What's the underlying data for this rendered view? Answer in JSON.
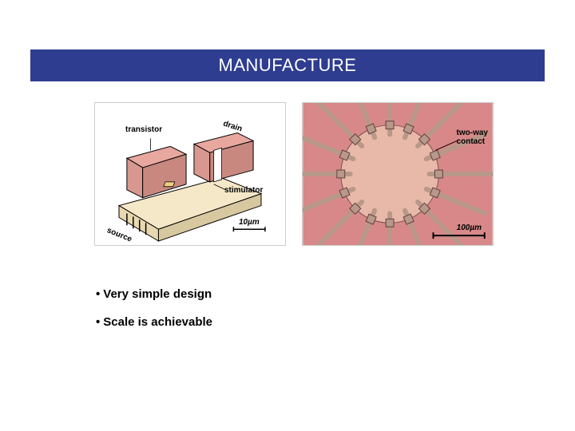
{
  "title_bar": {
    "text": "MANUFACTURE",
    "background_color": "#2e3d8f",
    "text_color": "#ffffff",
    "font_size": 22
  },
  "figure_left": {
    "type": "diagram",
    "labels": {
      "transistor": "transistor",
      "drain": "drain",
      "stimulator": "stimulator",
      "source": "source",
      "scale": "10µm"
    },
    "colors": {
      "block_top": "#e8a8a0",
      "block_side": "#f5e8c8",
      "outline": "#000000",
      "background": "#ffffff"
    }
  },
  "figure_right": {
    "type": "micrograph",
    "labels": {
      "two_way_contact": "two-way\ncontact",
      "scale": "100µm"
    },
    "colors": {
      "substrate": "#d88888",
      "center": "#e8b8a8",
      "electrode": "#b89888",
      "outline": "#000000"
    },
    "electrode_count": 16
  },
  "bullets": [
    "Very simple design",
    "Scale is achievable"
  ],
  "bullet_style": {
    "font_size": 15,
    "color": "#000000",
    "marker": "•"
  }
}
